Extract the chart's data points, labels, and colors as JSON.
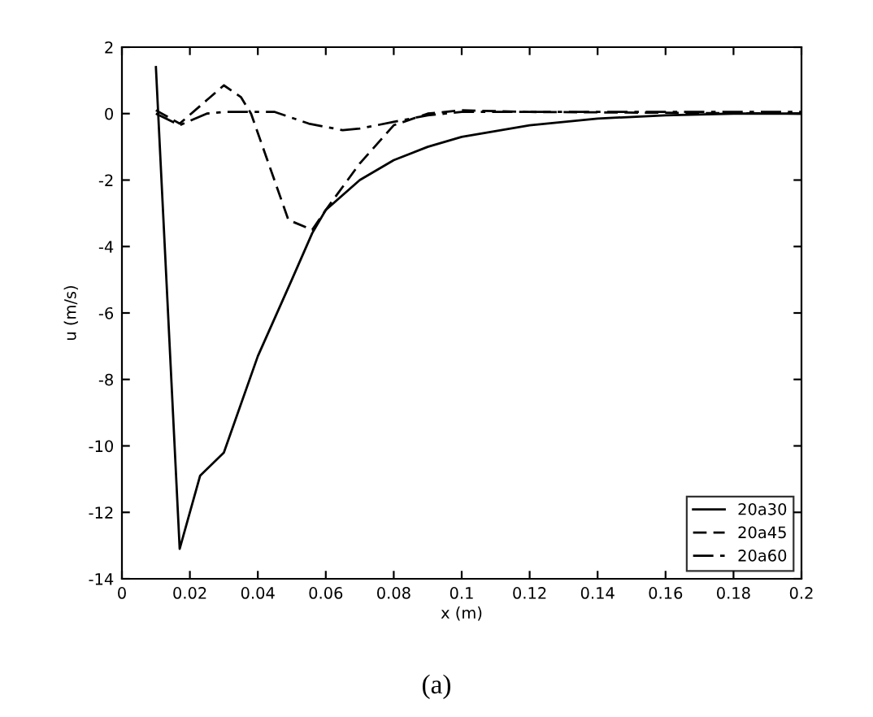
{
  "chart_data": {
    "type": "line",
    "xlabel": "x (m)",
    "ylabel": "u (m/s)",
    "annotations": [
      "(a)"
    ],
    "xlim": [
      0,
      0.2
    ],
    "ylim": [
      -14,
      2
    ],
    "xticks": [
      0,
      0.02,
      0.04,
      0.06,
      0.08,
      0.1,
      0.12,
      0.14,
      0.16,
      0.18,
      0.2
    ],
    "yticks": [
      -14,
      -12,
      -10,
      -8,
      -6,
      -4,
      -2,
      0,
      2
    ],
    "grid": false,
    "legend": "bottom right",
    "marker": "none",
    "series": [
      {
        "name": "20a30",
        "color": "#000000",
        "line_style": "solid",
        "x": [
          0.01,
          0.017,
          0.023,
          0.03,
          0.04,
          0.05,
          0.056,
          0.06,
          0.07,
          0.08,
          0.09,
          0.1,
          0.12,
          0.14,
          0.16,
          0.18,
          0.2
        ],
        "values": [
          1.4,
          -13.1,
          -10.9,
          -10.2,
          -7.3,
          -5.0,
          -3.6,
          -2.9,
          -2.0,
          -1.4,
          -1.0,
          -0.7,
          -0.35,
          -0.15,
          -0.05,
          0,
          0
        ]
      },
      {
        "name": "20a45",
        "color": "#000000",
        "line_style": "dashed",
        "x": [
          0.01,
          0.017,
          0.03,
          0.035,
          0.038,
          0.049,
          0.056,
          0.06,
          0.07,
          0.08,
          0.09,
          0.1,
          0.12,
          0.2
        ],
        "values": [
          0.1,
          -0.3,
          0.85,
          0.5,
          0,
          -3.2,
          -3.5,
          -2.9,
          -1.5,
          -0.35,
          0,
          0.1,
          0.05,
          0
        ]
      },
      {
        "name": "20a60",
        "color": "#000000",
        "line_style": "dashdot",
        "x": [
          0.01,
          0.017,
          0.025,
          0.03,
          0.045,
          0.055,
          0.065,
          0.07,
          0.08,
          0.09,
          0.1,
          0.2
        ],
        "values": [
          0,
          -0.35,
          0,
          0.05,
          0.05,
          -0.3,
          -0.5,
          -0.45,
          -0.25,
          -0.05,
          0.05,
          0.05
        ]
      }
    ]
  }
}
